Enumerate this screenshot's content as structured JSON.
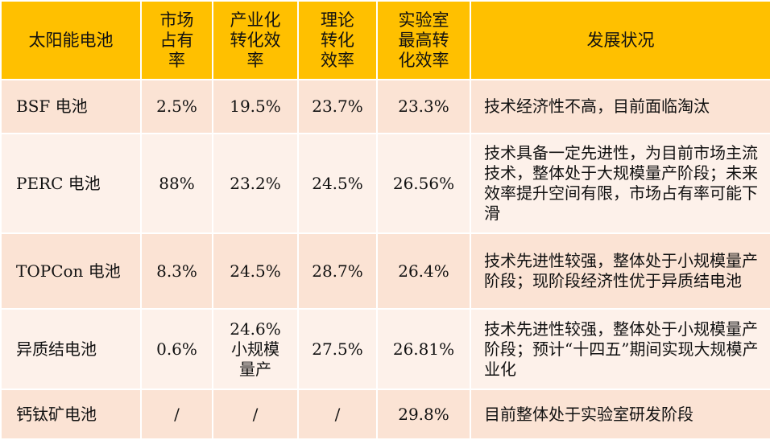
{
  "header": {
    "cell": "太阳能电池",
    "share": "市场\n占有\n率",
    "ind_eff": "产业化\n转化效\n率",
    "theory_eff": "理论\n转化\n效率",
    "lab_eff": "实验室\n最高转\n化效率",
    "status": "发展状况"
  },
  "rows": [
    {
      "name": "BSF 电池",
      "share": "2.5%",
      "ind_eff": "19.5%",
      "ind_eff_note": "",
      "theory_eff": "23.7%",
      "lab_eff": "23.3%",
      "status": "技术经济性不高，目前面临淘汰"
    },
    {
      "name": "PERC 电池",
      "share": "88%",
      "ind_eff": "23.2%",
      "ind_eff_note": "",
      "theory_eff": "24.5%",
      "lab_eff": "26.56%",
      "status": "技术具备一定先进性，为目前市场主流技术，整体处于大规模量产阶段；未来效率提升空间有限，市场占有率可能下滑"
    },
    {
      "name": "TOPCon 电池",
      "share": "8.3%",
      "ind_eff": "24.5%",
      "ind_eff_note": "",
      "theory_eff": "28.7%",
      "lab_eff": "26.4%",
      "status": "技术先进性较强，整体处于小规模量产阶段；现阶段经济性优于异质结电池"
    },
    {
      "name": "异质结电池",
      "share": "0.6%",
      "ind_eff": "24.6%",
      "ind_eff_note": "小规模\n量产",
      "theory_eff": "27.5%",
      "lab_eff": "26.81%",
      "status": "技术先进性较强，整体处于小规模量产阶段；预计“十四五”期间实现大规模产业化"
    },
    {
      "name": "钙钛矿电池",
      "share": "/",
      "ind_eff": "/",
      "ind_eff_note": "",
      "theory_eff": "/",
      "lab_eff": "29.8%",
      "status": "目前整体处于实验室研发阶段"
    }
  ]
}
